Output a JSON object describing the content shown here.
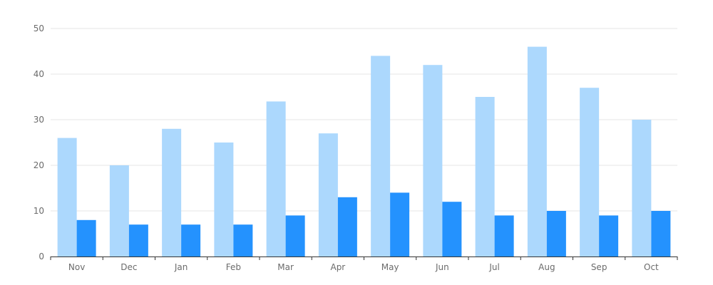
{
  "chart_data": {
    "type": "bar",
    "categories": [
      "Nov",
      "Dec",
      "Jan",
      "Feb",
      "Mar",
      "Apr",
      "May",
      "Jun",
      "Jul",
      "Aug",
      "Sep",
      "Oct"
    ],
    "series": [
      {
        "values": [
          26,
          20,
          28,
          25,
          34,
          27,
          44,
          42,
          35,
          46,
          37,
          30
        ],
        "color": "#acd8fd"
      },
      {
        "values": [
          8,
          7,
          7,
          7,
          9,
          13,
          14,
          12,
          9,
          10,
          9,
          10
        ],
        "color": "#2492fe"
      }
    ],
    "yticks": [
      "0",
      "10",
      "20",
      "30",
      "40",
      "50"
    ],
    "ylim": [
      0,
      50
    ],
    "grid": true,
    "legend": "none"
  }
}
